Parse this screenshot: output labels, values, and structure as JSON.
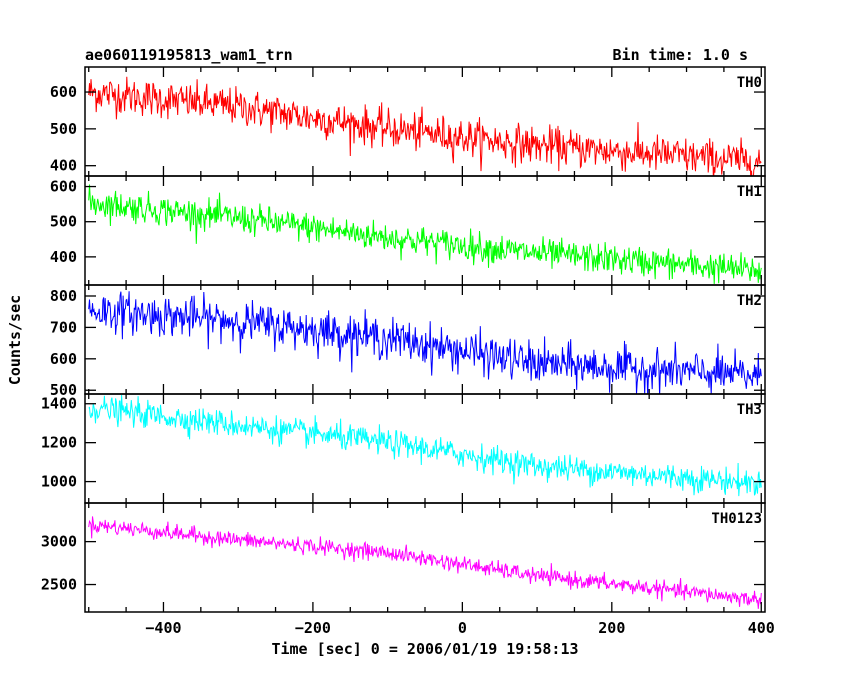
{
  "chart_data": {
    "type": "line",
    "title": "ae060119195813_wam1_trn",
    "bin_time": "Bin time: 1.0 s",
    "xlabel": "Time [sec] 0 = 2006/01/19 19:58:13",
    "ylabel": "Counts/sec",
    "xlim": [
      -505,
      405
    ],
    "grid": false,
    "x_tick_labels": [
      "−400",
      "−200",
      "0",
      "200",
      "400"
    ],
    "x_ticks": [
      -400,
      -200,
      0,
      200,
      400
    ],
    "x_range": [
      -500,
      400
    ],
    "series": [
      {
        "name": "TH0",
        "color": "#ff0000",
        "ylim": [
          372,
          668
        ],
        "ticks": [
          400,
          500,
          600
        ],
        "trend": {
          "x": [
            -500,
            -300,
            -100,
            100,
            400
          ],
          "y": [
            600,
            560,
            500,
            455,
            410
          ]
        },
        "noise": 30
      },
      {
        "name": "TH1",
        "color": "#00ff00",
        "ylim": [
          320,
          630
        ],
        "ticks": [
          400,
          500,
          600
        ],
        "trend": {
          "x": [
            -500,
            -300,
            -100,
            100,
            400
          ],
          "y": [
            555,
            510,
            455,
            410,
            360
          ]
        },
        "noise": 25
      },
      {
        "name": "TH2",
        "color": "#0000ff",
        "ylim": [
          488,
          835
        ],
        "ticks": [
          500,
          600,
          700,
          800
        ],
        "trend": {
          "x": [
            -500,
            -300,
            -100,
            100,
            400
          ],
          "y": [
            755,
            720,
            665,
            585,
            545
          ]
        },
        "noise": 38
      },
      {
        "name": "TH3",
        "color": "#00ffff",
        "ylim": [
          890,
          1450
        ],
        "ticks": [
          1000,
          1200,
          1400
        ],
        "trend": {
          "x": [
            -500,
            -300,
            -100,
            100,
            400
          ],
          "y": [
            1380,
            1290,
            1200,
            1080,
            990
          ]
        },
        "noise": 40
      },
      {
        "name": "TH0123",
        "color": "#ff00ff",
        "ylim": [
          2180,
          3450
        ],
        "ticks": [
          2500,
          3000
        ],
        "trend": {
          "x": [
            -500,
            -300,
            -100,
            100,
            400
          ],
          "y": [
            3200,
            3020,
            2870,
            2600,
            2320
          ]
        },
        "noise": 55
      }
    ]
  }
}
